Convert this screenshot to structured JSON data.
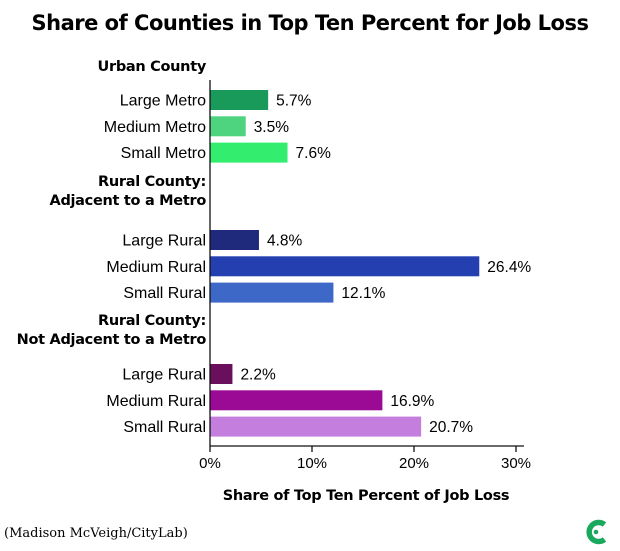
{
  "chart_data": {
    "type": "bar",
    "orientation": "horizontal",
    "title": "Share of Counties in Top Ten Percent for Job Loss",
    "xlabel": "Share of Top Ten Percent of Job Loss",
    "ylabel": "",
    "xlim": [
      0,
      30
    ],
    "x_ticks": [
      "0%",
      "10%",
      "20%",
      "30%"
    ],
    "groups": [
      {
        "name": "Urban County",
        "categories": [
          "Large Metro",
          "Medium Metro",
          "Small Metro"
        ],
        "values": [
          5.7,
          3.5,
          7.6
        ],
        "labels": [
          "5.7%",
          "3.5%",
          "7.6%"
        ],
        "colors": [
          "#1a9a5a",
          "#4ed37e",
          "#33ee6e"
        ]
      },
      {
        "name": "Rural County:\nAdjacent to a Metro",
        "categories": [
          "Large Rural",
          "Medium Rural",
          "Small Rural"
        ],
        "values": [
          4.8,
          26.4,
          12.1
        ],
        "labels": [
          "4.8%",
          "26.4%",
          "12.1%"
        ],
        "colors": [
          "#1f2a7c",
          "#2440b0",
          "#3e68c8"
        ]
      },
      {
        "name": "Rural County:\nNot Adjacent to a Metro",
        "categories": [
          "Large Rural",
          "Medium Rural",
          "Small Rural"
        ],
        "values": [
          2.2,
          16.9,
          20.7
        ],
        "labels": [
          "2.2%",
          "16.9%",
          "20.7%"
        ],
        "colors": [
          "#6a0f5c",
          "#9a0a94",
          "#c47ede"
        ]
      }
    ],
    "grid": false
  },
  "credit": "(Madison McVeigh/CityLab)",
  "logo": {
    "name": "citylab-logo-icon",
    "color": "#1aa85c"
  }
}
